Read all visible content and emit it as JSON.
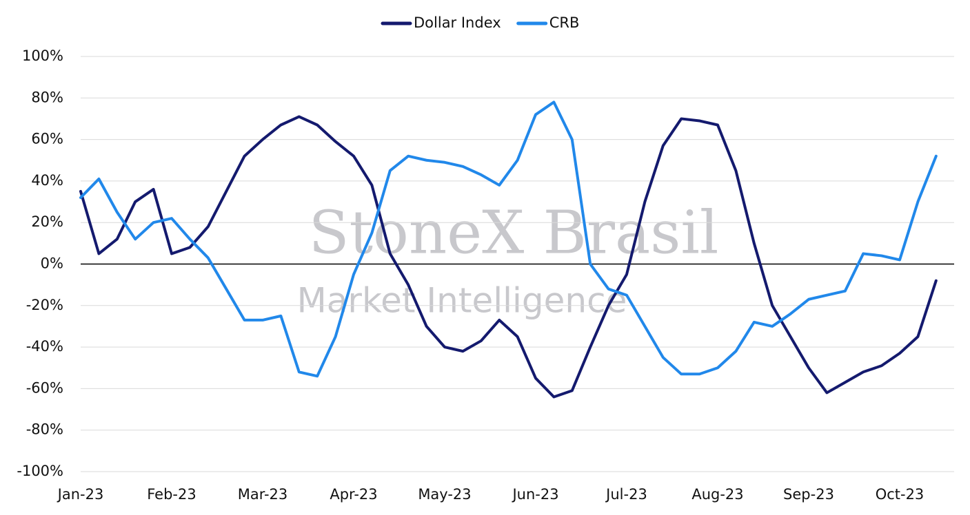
{
  "chart_data": {
    "type": "line",
    "watermark": [
      "StoneX Brasil",
      "Market Intelligence"
    ],
    "categories": [
      "Jan-23",
      null,
      null,
      null,
      null,
      "Feb-23",
      null,
      null,
      null,
      null,
      "Mar-23",
      null,
      null,
      null,
      null,
      "Apr-23",
      null,
      null,
      null,
      null,
      "May-23",
      null,
      null,
      null,
      null,
      "Jun-23",
      null,
      null,
      null,
      null,
      "Jul-23",
      null,
      null,
      null,
      null,
      "Aug-23",
      null,
      null,
      null,
      null,
      "Sep-23",
      null,
      null,
      null,
      null,
      "Oct-23",
      null,
      null
    ],
    "series": [
      {
        "name": "Dollar Index",
        "color": "#141a6e",
        "values": [
          35,
          5,
          12,
          30,
          36,
          5,
          8,
          18,
          35,
          52,
          60,
          67,
          71,
          67,
          59,
          52,
          38,
          5,
          -10,
          -30,
          -40,
          -42,
          -37,
          -27,
          -35,
          -55,
          -64,
          -61,
          -40,
          -20,
          -5,
          30,
          57,
          70,
          69,
          67,
          45,
          10,
          -20,
          -35,
          -50,
          -62,
          -57,
          -52,
          -49,
          -43,
          -35,
          -8
        ]
      },
      {
        "name": "CRB",
        "color": "#2188ea",
        "values": [
          32,
          41,
          25,
          12,
          20,
          22,
          12,
          3,
          -12,
          -27,
          -27,
          -25,
          -52,
          -54,
          -35,
          -5,
          15,
          45,
          52,
          50,
          49,
          47,
          43,
          38,
          50,
          72,
          78,
          60,
          0,
          -12,
          -15,
          -30,
          -45,
          -53,
          -53,
          -50,
          -42,
          -28,
          -30,
          -24,
          -17,
          -15,
          -13,
          5,
          4,
          2,
          30,
          52
        ]
      }
    ],
    "ylim": [
      -100,
      100
    ],
    "yticks": [
      {
        "value": -100,
        "label": "-100%"
      },
      {
        "value": -80,
        "label": "-80%"
      },
      {
        "value": -60,
        "label": "-60%"
      },
      {
        "value": -40,
        "label": "-40%"
      },
      {
        "value": -20,
        "label": "-20%"
      },
      {
        "value": 0,
        "label": "0%"
      },
      {
        "value": 20,
        "label": "20%"
      },
      {
        "value": 40,
        "label": "40%"
      },
      {
        "value": 60,
        "label": "60%"
      },
      {
        "value": 80,
        "label": "80%"
      },
      {
        "value": 100,
        "label": "100%"
      }
    ],
    "grid": true,
    "legend": "top"
  }
}
